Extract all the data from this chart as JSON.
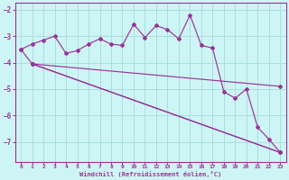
{
  "bg_color": "#cef5f5",
  "grid_color": "#a8dede",
  "line_color": "#993399",
  "xlabel": "Windchill (Refroidissement éolien,°C)",
  "xlabel_color": "#993399",
  "ylabel_color": "#993399",
  "ylim": [
    -7.75,
    -1.75
  ],
  "xlim": [
    -0.5,
    23.5
  ],
  "yticks": [
    -7,
    -6,
    -5,
    -4,
    -3,
    -2
  ],
  "xticks": [
    0,
    1,
    2,
    3,
    4,
    5,
    6,
    7,
    8,
    9,
    10,
    11,
    12,
    13,
    14,
    15,
    16,
    17,
    18,
    19,
    20,
    21,
    22,
    23
  ],
  "line1_x": [
    0,
    1,
    2,
    3,
    4,
    5,
    6,
    7,
    8,
    9,
    10,
    11,
    12,
    13,
    14,
    15,
    16,
    17,
    18,
    19,
    20,
    21,
    22,
    23
  ],
  "line1_y": [
    -3.5,
    -3.3,
    -3.15,
    -3.0,
    -3.65,
    -3.55,
    -3.3,
    -3.1,
    -3.3,
    -3.35,
    -2.55,
    -3.05,
    -2.6,
    -2.75,
    -3.1,
    -2.2,
    -3.35,
    -3.45,
    -5.1,
    -5.35,
    -5.0,
    -6.45,
    -6.9,
    -7.4
  ],
  "line2_x": [
    0,
    1,
    23
  ],
  "line2_y": [
    -3.5,
    -4.05,
    -7.4
  ],
  "line3_x": [
    1,
    23
  ],
  "line3_y": [
    -4.05,
    -4.9
  ],
  "line4_x": [
    1,
    23
  ],
  "line4_y": [
    -4.05,
    -7.4
  ]
}
